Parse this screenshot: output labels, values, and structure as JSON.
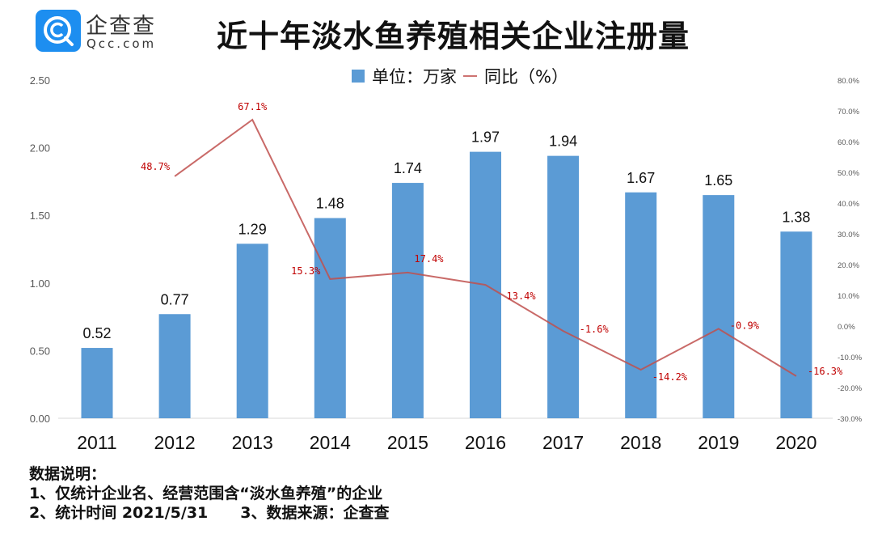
{
  "brand": {
    "name_cn": "企查查",
    "name_en": "Qcc.com",
    "color": "#1d8ef0"
  },
  "title": "近十年淡水鱼养殖相关企业注册量",
  "legend": {
    "bar_label": "单位：万家",
    "line_label": "同比（%）"
  },
  "notes": {
    "heading": "数据说明：",
    "line1": "1、仅统计企业名、经营范围含“淡水鱼养殖”的企业",
    "line2a": "2、统计时间 2021/5/31",
    "line2b": "3、数据来源：企查查"
  },
  "chart_data": {
    "type": "bar",
    "title": "近十年淡水鱼养殖相关企业注册量",
    "xlabel": "",
    "ylabel": "单位：万家",
    "y2label": "同比（%）",
    "categories": [
      "2011",
      "2012",
      "2013",
      "2014",
      "2015",
      "2016",
      "2017",
      "2018",
      "2019",
      "2020"
    ],
    "series": [
      {
        "name": "单位：万家",
        "type": "bar",
        "axis": "left",
        "color": "#5b9bd5",
        "values": [
          0.52,
          0.77,
          1.29,
          1.48,
          1.74,
          1.97,
          1.94,
          1.67,
          1.65,
          1.38
        ],
        "labels": [
          "0.52",
          "0.77",
          "1.29",
          "1.48",
          "1.74",
          "1.97",
          "1.94",
          "1.67",
          "1.65",
          "1.38"
        ]
      },
      {
        "name": "同比（%）",
        "type": "line",
        "axis": "right",
        "color": "#c0504d",
        "values": [
          null,
          48.7,
          67.1,
          15.3,
          17.4,
          13.4,
          -1.6,
          -14.2,
          -0.9,
          -16.3
        ],
        "labels": [
          null,
          "48.7%",
          "67.1%",
          "15.3%",
          "17.4%",
          "13.4%",
          "-1.6%",
          "-14.2%",
          "-0.9%",
          "-16.3%"
        ]
      }
    ],
    "ylim": [
      0,
      2.5
    ],
    "yticks": [
      "0.00",
      "0.50",
      "1.00",
      "1.50",
      "2.00",
      "2.50"
    ],
    "y2lim": [
      -30,
      80
    ],
    "y2ticks": [
      "-30.0%",
      "-20.0%",
      "-10.0%",
      "0.0%",
      "10.0%",
      "20.0%",
      "30.0%",
      "40.0%",
      "50.0%",
      "60.0%",
      "70.0%",
      "80.0%"
    ],
    "grid": false,
    "legend_position": "top-center"
  }
}
